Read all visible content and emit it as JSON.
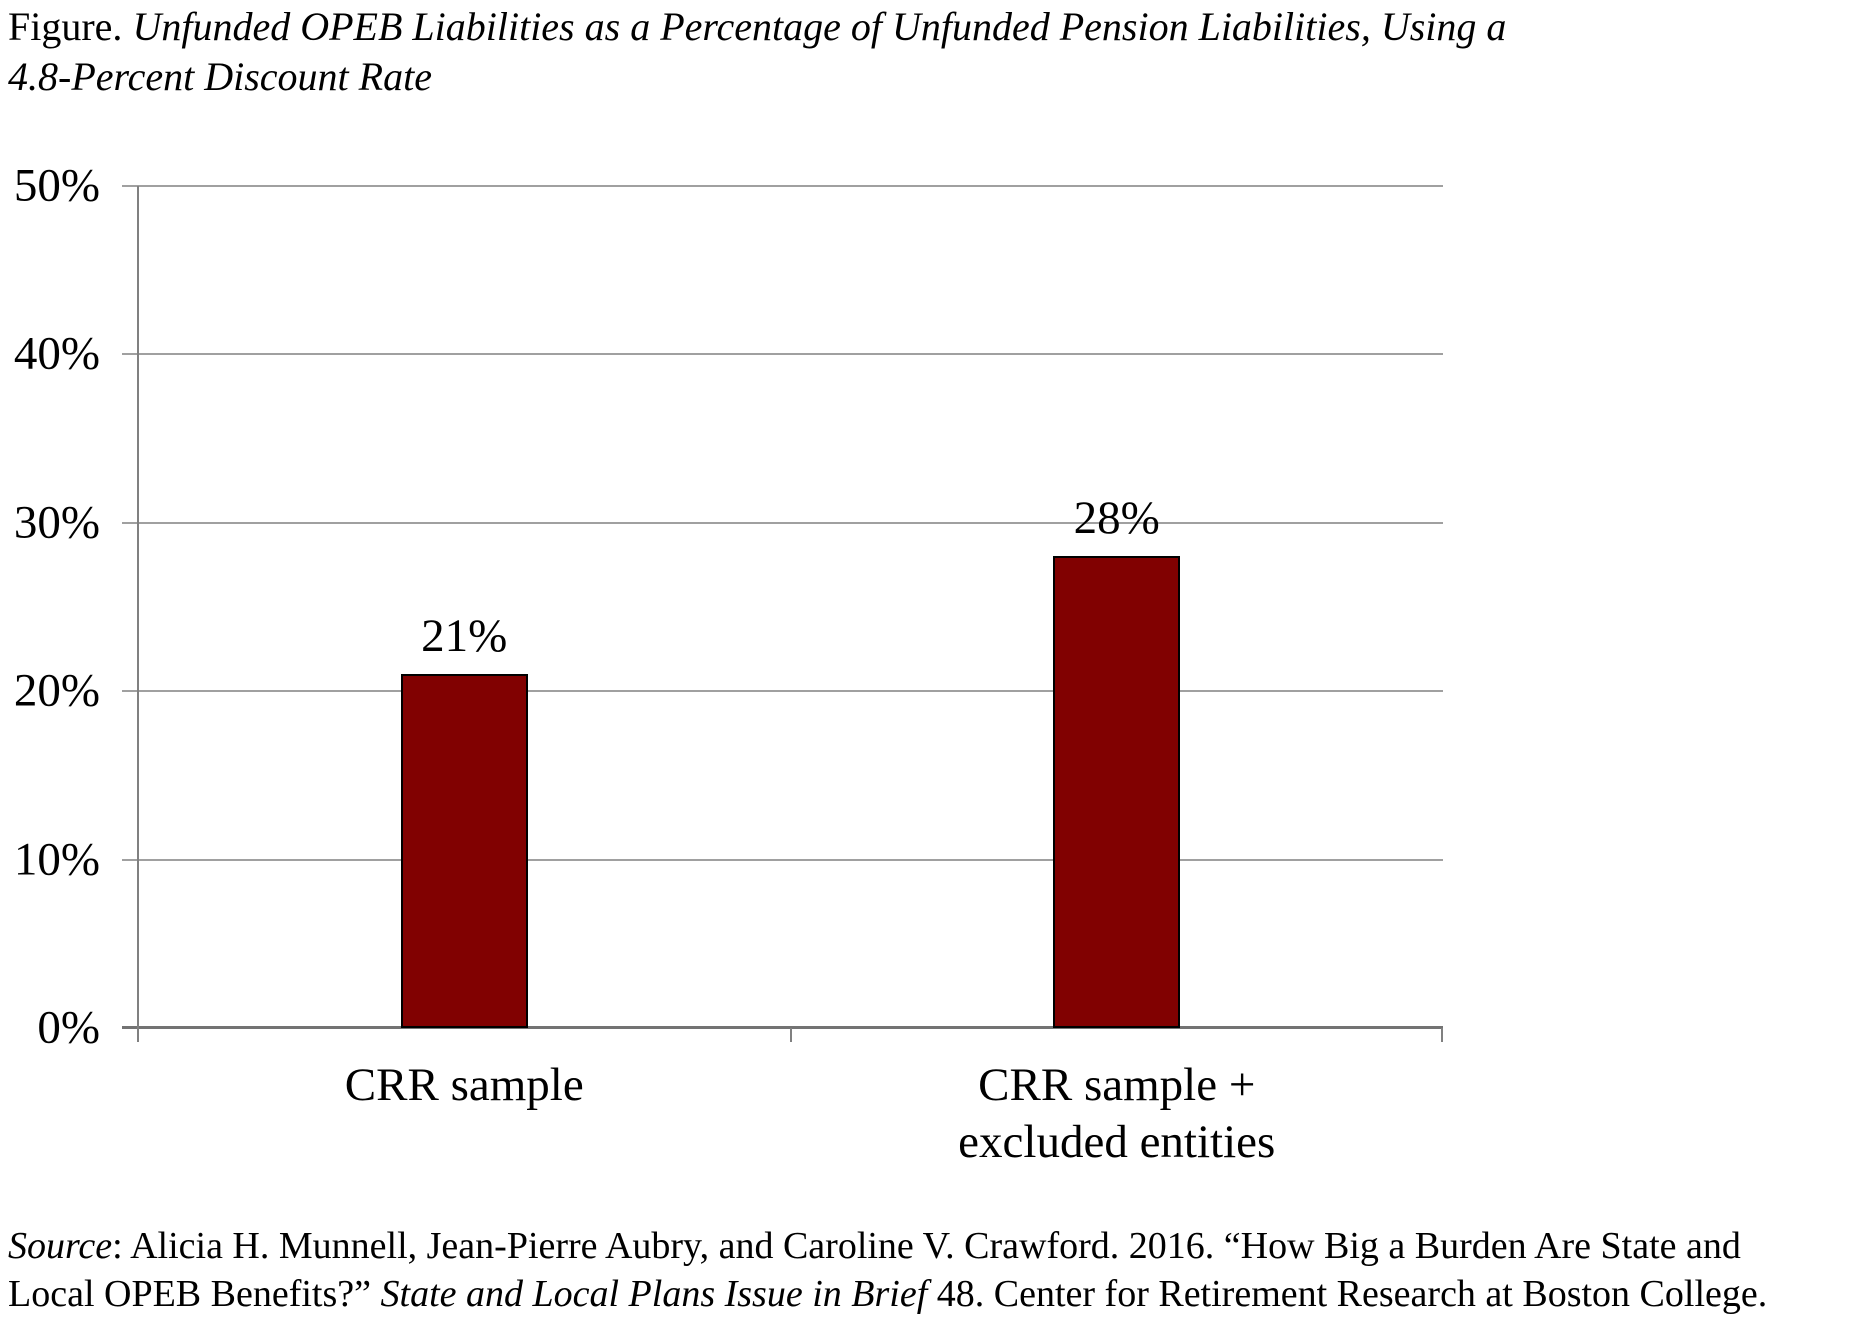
{
  "title": {
    "prefix": "Figure. ",
    "italic": "Unfunded OPEB Liabilities as a Percentage of Unfunded Pension Liabilities, Using a\n4.8-Percent Discount Rate"
  },
  "chart_data": {
    "type": "bar",
    "title": "Unfunded OPEB Liabilities as a Percentage of Unfunded Pension Liabilities, Using a 4.8-Percent Discount Rate",
    "categories": [
      "CRR sample",
      "CRR sample +\nexcluded entities"
    ],
    "values": [
      21,
      28
    ],
    "bar_labels": [
      "21%",
      "28%"
    ],
    "unit": "percent",
    "xlabel": "",
    "ylabel": "",
    "ylim": [
      0,
      50
    ],
    "ytick_labels": [
      "0%",
      "10%",
      "20%",
      "30%",
      "40%",
      "50%"
    ],
    "grid": "horizontal",
    "legend": "none",
    "bar_color": "#810101",
    "bar_border_color": "#000000",
    "gridline_color": "#a0a0a0",
    "axis_color": "#808080"
  },
  "source": {
    "prefix_italic": "Source",
    "mid": ": Alicia H. Munnell, Jean-Pierre Aubry, and Caroline V. Crawford. 2016. “How Big a Burden Are State and\nLocal OPEB Benefits?” ",
    "italic": "State and Local Plans Issue in Brief",
    "suffix": " 48. Center for Retirement Research at Boston College."
  }
}
